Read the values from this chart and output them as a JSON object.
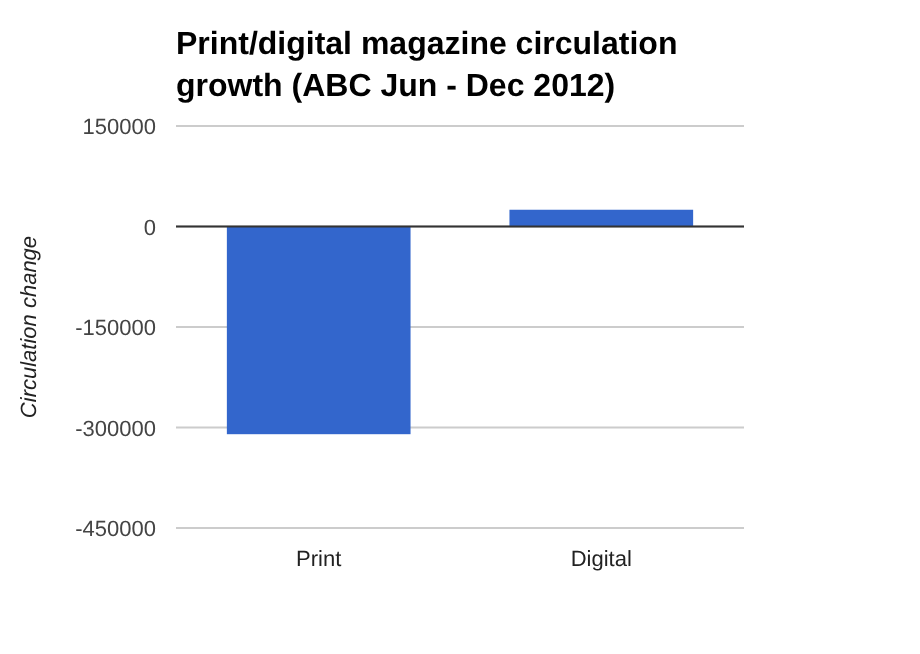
{
  "chart_data": {
    "type": "bar",
    "title": "Print/digital magazine circulation growth (ABC Jun - Dec 2012)",
    "ylabel": "Circulation change",
    "categories": [
      "Print",
      "Digital"
    ],
    "values": [
      -310000,
      25000
    ],
    "color": "#3366cc",
    "ylim": [
      -450000,
      150000
    ],
    "yticks": [
      -450000,
      -300000,
      -150000,
      0,
      150000
    ],
    "grid": "y"
  }
}
